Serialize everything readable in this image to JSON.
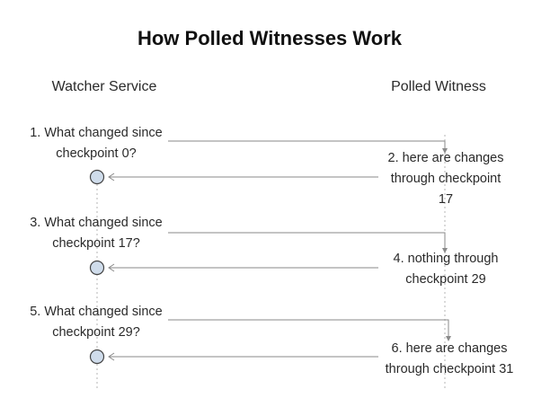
{
  "title": "How Polled Witnesses Work",
  "participants": {
    "watcher": "Watcher Service",
    "witness": "Polled Witness"
  },
  "requests": [
    {
      "line1": "1. What changed since",
      "line2": "checkpoint 0?"
    },
    {
      "line1": "3. What changed since",
      "line2": "checkpoint 17?"
    },
    {
      "line1": "5. What changed since",
      "line2": "checkpoint 29?"
    }
  ],
  "responses": [
    {
      "lines": [
        "2. here are changes",
        "through checkpoint",
        "17"
      ]
    },
    {
      "lines": [
        "4. nothing through",
        "checkpoint 29"
      ]
    },
    {
      "lines": [
        "6. here are changes",
        "through checkpoint 31"
      ]
    }
  ],
  "colors": {
    "node_fill": "#cfdceb",
    "line": "#8a8a8a",
    "lifeline": "#b5b5b5"
  }
}
